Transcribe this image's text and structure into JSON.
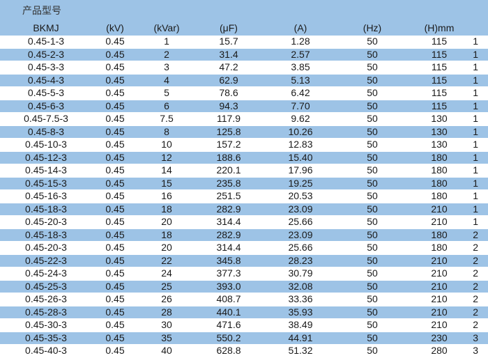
{
  "title": "产品型号",
  "headers": [
    "BKMJ",
    "(kV)",
    "(kVar)",
    "(μF)",
    "(A)",
    "(Hz)",
    "(H)mm",
    ""
  ],
  "rows": [
    [
      "0.45-1-3",
      "0.45",
      "1",
      "15.7",
      "1.28",
      "50",
      "115",
      "1"
    ],
    [
      "0.45-2-3",
      "0.45",
      "2",
      "31.4",
      "2.57",
      "50",
      "115",
      "1"
    ],
    [
      "0.45-3-3",
      "0.45",
      "3",
      "47.2",
      "3.85",
      "50",
      "115",
      "1"
    ],
    [
      "0.45-4-3",
      "0.45",
      "4",
      "62.9",
      "5.13",
      "50",
      "115",
      "1"
    ],
    [
      "0.45-5-3",
      "0.45",
      "5",
      "78.6",
      "6.42",
      "50",
      "115",
      "1"
    ],
    [
      "0.45-6-3",
      "0.45",
      "6",
      "94.3",
      "7.70",
      "50",
      "115",
      "1"
    ],
    [
      "0.45-7.5-3",
      "0.45",
      "7.5",
      "117.9",
      "9.62",
      "50",
      "130",
      "1"
    ],
    [
      "0.45-8-3",
      "0.45",
      "8",
      "125.8",
      "10.26",
      "50",
      "130",
      "1"
    ],
    [
      "0.45-10-3",
      "0.45",
      "10",
      "157.2",
      "12.83",
      "50",
      "130",
      "1"
    ],
    [
      "0.45-12-3",
      "0.45",
      "12",
      "188.6",
      "15.40",
      "50",
      "180",
      "1"
    ],
    [
      "0.45-14-3",
      "0.45",
      "14",
      "220.1",
      "17.96",
      "50",
      "180",
      "1"
    ],
    [
      "0.45-15-3",
      "0.45",
      "15",
      "235.8",
      "19.25",
      "50",
      "180",
      "1"
    ],
    [
      "0.45-16-3",
      "0.45",
      "16",
      "251.5",
      "20.53",
      "50",
      "180",
      "1"
    ],
    [
      "0.45-18-3",
      "0.45",
      "18",
      "282.9",
      "23.09",
      "50",
      "210",
      "1"
    ],
    [
      "0.45-20-3",
      "0.45",
      "20",
      "314.4",
      "25.66",
      "50",
      "210",
      "1"
    ],
    [
      "0.45-18-3",
      "0.45",
      "18",
      "282.9",
      "23.09",
      "50",
      "180",
      "2"
    ],
    [
      "0.45-20-3",
      "0.45",
      "20",
      "314.4",
      "25.66",
      "50",
      "180",
      "2"
    ],
    [
      "0.45-22-3",
      "0.45",
      "22",
      "345.8",
      "28.23",
      "50",
      "210",
      "2"
    ],
    [
      "0.45-24-3",
      "0.45",
      "24",
      "377.3",
      "30.79",
      "50",
      "210",
      "2"
    ],
    [
      "0.45-25-3",
      "0.45",
      "25",
      "393.0",
      "32.08",
      "50",
      "210",
      "2"
    ],
    [
      "0.45-26-3",
      "0.45",
      "26",
      "408.7",
      "33.36",
      "50",
      "210",
      "2"
    ],
    [
      "0.45-28-3",
      "0.45",
      "28",
      "440.1",
      "35.93",
      "50",
      "210",
      "2"
    ],
    [
      "0.45-30-3",
      "0.45",
      "30",
      "471.6",
      "38.49",
      "50",
      "210",
      "2"
    ],
    [
      "0.45-35-3",
      "0.45",
      "35",
      "550.2",
      "44.91",
      "50",
      "230",
      "3"
    ],
    [
      "0.45-40-3",
      "0.45",
      "40",
      "628.8",
      "51.32",
      "50",
      "280",
      "3"
    ]
  ]
}
